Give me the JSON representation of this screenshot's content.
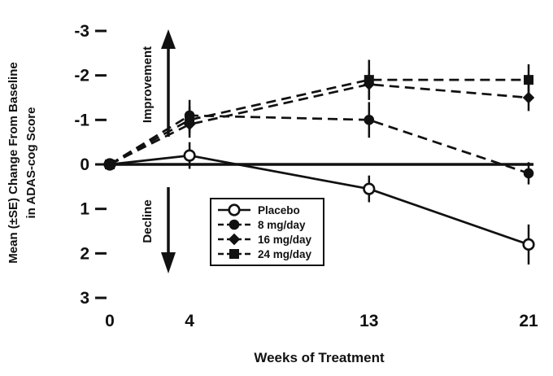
{
  "figure": {
    "y_axis_label_line1": "Mean (±SE) Change From Baseline",
    "y_axis_label_line2": "in ADAS-cog Score",
    "x_axis_label": "Weeks of Treatment"
  },
  "chart_data": {
    "type": "line",
    "title": "",
    "xlabel": "Weeks of Treatment",
    "ylabel": "Mean (±SE) Change From Baseline in ADAS-cog Score",
    "xlim": [
      0,
      21
    ],
    "ylim": [
      -3,
      3
    ],
    "y_axis_inverted": true,
    "grid": false,
    "legend_position": "inside lower-center-left, boxed",
    "x": [
      0,
      4,
      13,
      21
    ],
    "x_tick_labels": [
      "0",
      "4",
      "13",
      "21"
    ],
    "y_ticks": [
      -3,
      -2,
      -1,
      0,
      1,
      2,
      3
    ],
    "y_tick_labels": [
      "-3",
      "-2",
      "-1",
      "0",
      "1",
      "2",
      "3"
    ],
    "series": [
      {
        "name": "Placebo",
        "marker": "open-circle",
        "line": "solid",
        "values": [
          0,
          -0.2,
          0.55,
          1.8
        ],
        "se": [
          0.08,
          0.3,
          0.3,
          0.45
        ]
      },
      {
        "name": "8 mg/day",
        "marker": "filled-circle",
        "line": "dashed",
        "values": [
          0,
          -1.1,
          -1.0,
          0.2
        ],
        "se": [
          0.08,
          0.35,
          0.4,
          0.25
        ]
      },
      {
        "name": "16 mg/day",
        "marker": "filled-diamond",
        "line": "dashed",
        "values": [
          0,
          -0.9,
          -1.8,
          -1.5
        ],
        "se": [
          0.08,
          0.3,
          0.35,
          0.3
        ]
      },
      {
        "name": "24 mg/day",
        "marker": "filled-square",
        "line": "dashed",
        "values": [
          0,
          -1.0,
          -1.9,
          -1.9
        ],
        "se": [
          0.08,
          0.3,
          0.45,
          0.35
        ]
      }
    ],
    "annotations": [
      {
        "text": "Improvement",
        "direction": "up"
      },
      {
        "text": "Decline",
        "direction": "down"
      }
    ]
  },
  "legend": {
    "items": [
      "Placebo",
      "8 mg/day",
      "16 mg/day",
      "24 mg/day"
    ]
  },
  "colors": {
    "ink": "#111111",
    "background": "#ffffff"
  }
}
